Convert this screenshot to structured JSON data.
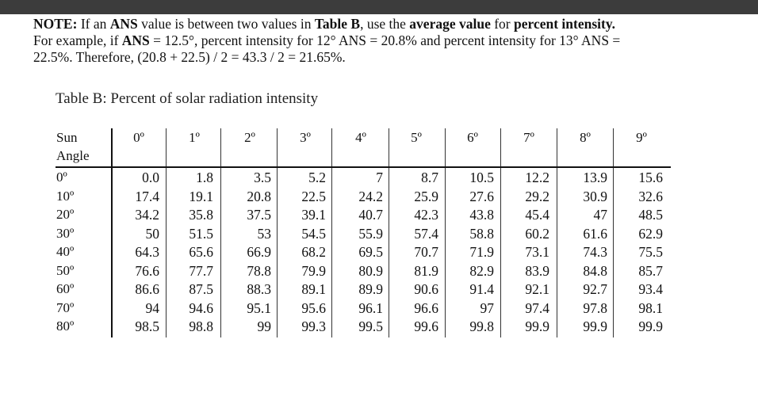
{
  "note": {
    "label": "NOTE:",
    "t1": " If an ",
    "ans1": "ANS",
    "t2": " value is between two values in ",
    "tableb": "Table B",
    "t3": ", use the ",
    "avg": "average value",
    "t4": " for ",
    "pi": "percent intensity.",
    "line2": "For example, if ",
    "ans2": "ANS",
    "t5": " = 12.5°, percent intensity for 12° ANS = 20.8% and percent intensity for 13° ANS =",
    "line3": "22.5%. Therefore, (20.8 + 22.5) / 2 = 43.3 / 2 =  21.65%."
  },
  "table": {
    "caption": "Table B: Percent of solar radiation intensity",
    "row_header_1": "Sun",
    "row_header_2": "Angle",
    "columns": [
      "0º",
      "1º",
      "2º",
      "3º",
      "4º",
      "5º",
      "6º",
      "7º",
      "8º",
      "9º"
    ],
    "rows": [
      {
        "angle": "0º",
        "values": [
          "0.0",
          "1.8",
          "3.5",
          "5.2",
          "7",
          "8.7",
          "10.5",
          "12.2",
          "13.9",
          "15.6"
        ]
      },
      {
        "angle": "10º",
        "values": [
          "17.4",
          "19.1",
          "20.8",
          "22.5",
          "24.2",
          "25.9",
          "27.6",
          "29.2",
          "30.9",
          "32.6"
        ]
      },
      {
        "angle": "20º",
        "values": [
          "34.2",
          "35.8",
          "37.5",
          "39.1",
          "40.7",
          "42.3",
          "43.8",
          "45.4",
          "47",
          "48.5"
        ]
      },
      {
        "angle": "30º",
        "values": [
          "50",
          "51.5",
          "53",
          "54.5",
          "55.9",
          "57.4",
          "58.8",
          "60.2",
          "61.6",
          "62.9"
        ]
      },
      {
        "angle": "40º",
        "values": [
          "64.3",
          "65.6",
          "66.9",
          "68.2",
          "69.5",
          "70.7",
          "71.9",
          "73.1",
          "74.3",
          "75.5"
        ]
      },
      {
        "angle": "50º",
        "values": [
          "76.6",
          "77.7",
          "78.8",
          "79.9",
          "80.9",
          "81.9",
          "82.9",
          "83.9",
          "84.8",
          "85.7"
        ]
      },
      {
        "angle": "60º",
        "values": [
          "86.6",
          "87.5",
          "88.3",
          "89.1",
          "89.9",
          "90.6",
          "91.4",
          "92.1",
          "92.7",
          "93.4"
        ]
      },
      {
        "angle": "70º",
        "values": [
          "94",
          "94.6",
          "95.1",
          "95.6",
          "96.1",
          "96.6",
          "97",
          "97.4",
          "97.8",
          "98.1"
        ]
      },
      {
        "angle": "80º",
        "values": [
          "98.5",
          "98.8",
          "99",
          "99.3",
          "99.5",
          "99.6",
          "99.8",
          "99.9",
          "99.9",
          "99.9"
        ]
      }
    ]
  }
}
